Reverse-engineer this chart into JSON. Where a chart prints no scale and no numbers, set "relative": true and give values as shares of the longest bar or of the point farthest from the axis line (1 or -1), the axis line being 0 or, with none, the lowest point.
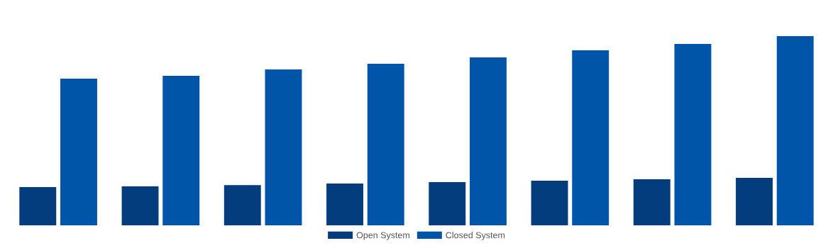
{
  "chart_data": {
    "type": "bar",
    "relative": true,
    "categories": [
      null,
      null,
      null,
      null,
      null,
      null,
      null,
      null
    ],
    "series": [
      {
        "name": "Open System",
        "color": "#033d7d",
        "values": [
          0.202,
          0.206,
          0.213,
          0.221,
          0.228,
          0.236,
          0.243,
          0.251
        ]
      },
      {
        "name": "Closed System",
        "color": "#0055a8",
        "values": [
          0.775,
          0.79,
          0.824,
          0.854,
          0.888,
          0.925,
          0.959,
          1.0
        ]
      }
    ],
    "legend": "bottom",
    "grid": false
  }
}
